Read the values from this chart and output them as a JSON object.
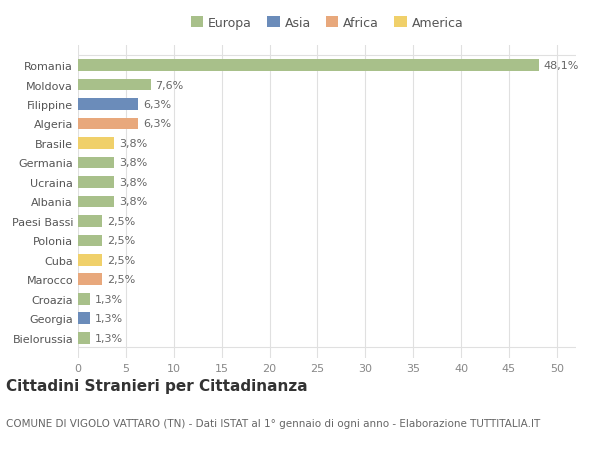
{
  "categories": [
    "Romania",
    "Moldova",
    "Filippine",
    "Algeria",
    "Brasile",
    "Germania",
    "Ucraina",
    "Albania",
    "Paesi Bassi",
    "Polonia",
    "Cuba",
    "Marocco",
    "Croazia",
    "Georgia",
    "Bielorussia"
  ],
  "values": [
    48.1,
    7.6,
    6.3,
    6.3,
    3.8,
    3.8,
    3.8,
    3.8,
    2.5,
    2.5,
    2.5,
    2.5,
    1.3,
    1.3,
    1.3
  ],
  "labels": [
    "48,1%",
    "7,6%",
    "6,3%",
    "6,3%",
    "3,8%",
    "3,8%",
    "3,8%",
    "3,8%",
    "2,5%",
    "2,5%",
    "2,5%",
    "2,5%",
    "1,3%",
    "1,3%",
    "1,3%"
  ],
  "continents": [
    "Europa",
    "Europa",
    "Asia",
    "Africa",
    "America",
    "Europa",
    "Europa",
    "Europa",
    "Europa",
    "Europa",
    "America",
    "Africa",
    "Europa",
    "Asia",
    "Europa"
  ],
  "continent_colors": {
    "Europa": "#a8c08a",
    "Asia": "#6b8cba",
    "Africa": "#e8a87c",
    "America": "#f0d06a"
  },
  "legend_order": [
    "Europa",
    "Asia",
    "Africa",
    "America"
  ],
  "title": "Cittadini Stranieri per Cittadinanza",
  "subtitle": "COMUNE DI VIGOLO VATTARO (TN) - Dati ISTAT al 1° gennaio di ogni anno - Elaborazione TUTTITALIA.IT",
  "xlim": [
    0,
    52
  ],
  "xticks": [
    0,
    5,
    10,
    15,
    20,
    25,
    30,
    35,
    40,
    45,
    50
  ],
  "background_color": "#ffffff",
  "grid_color": "#e0e0e0",
  "bar_height": 0.6,
  "title_fontsize": 11,
  "subtitle_fontsize": 7.5,
  "label_fontsize": 8,
  "tick_fontsize": 8,
  "legend_fontsize": 9
}
